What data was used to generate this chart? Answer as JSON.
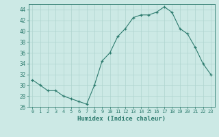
{
  "xlabel": "Humidex (Indice chaleur)",
  "x": [
    0,
    1,
    2,
    3,
    4,
    5,
    6,
    7,
    8,
    9,
    10,
    11,
    12,
    13,
    14,
    15,
    16,
    17,
    18,
    19,
    20,
    21,
    22,
    23
  ],
  "y": [
    31,
    30,
    29,
    29,
    28,
    27.5,
    27,
    26.5,
    30,
    34.5,
    36,
    39,
    40.5,
    42.5,
    43,
    43,
    43.5,
    44.5,
    43.5,
    40.5,
    39.5,
    37,
    34,
    32
  ],
  "line_color": "#2d7b6e",
  "marker": "+",
  "marker_color": "#2d7b6e",
  "bg_color": "#cce9e5",
  "grid_color": "#afd4cf",
  "tick_color": "#2d7b6e",
  "label_color": "#2d7b6e",
  "ylim": [
    26,
    45
  ],
  "yticks": [
    26,
    28,
    30,
    32,
    34,
    36,
    38,
    40,
    42,
    44
  ],
  "xticks": [
    0,
    1,
    2,
    3,
    4,
    5,
    6,
    7,
    8,
    9,
    10,
    11,
    12,
    13,
    14,
    15,
    16,
    17,
    18,
    19,
    20,
    21,
    22,
    23
  ]
}
